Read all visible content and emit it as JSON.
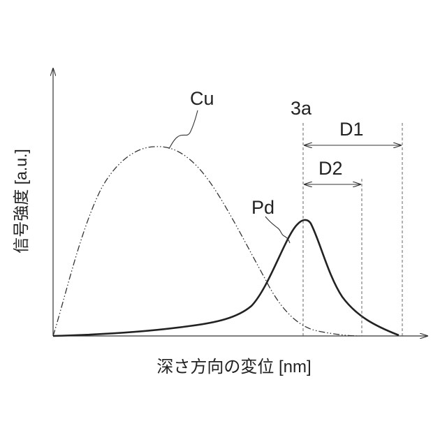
{
  "figure": {
    "ylabel": "信号強度 [a.u.]",
    "xlabel": "深さ方向の変位 [nm]",
    "labels": {
      "cu": "Cu",
      "pd": "Pd",
      "ref": "3a",
      "d1": "D1",
      "d2": "D2"
    }
  }
}
